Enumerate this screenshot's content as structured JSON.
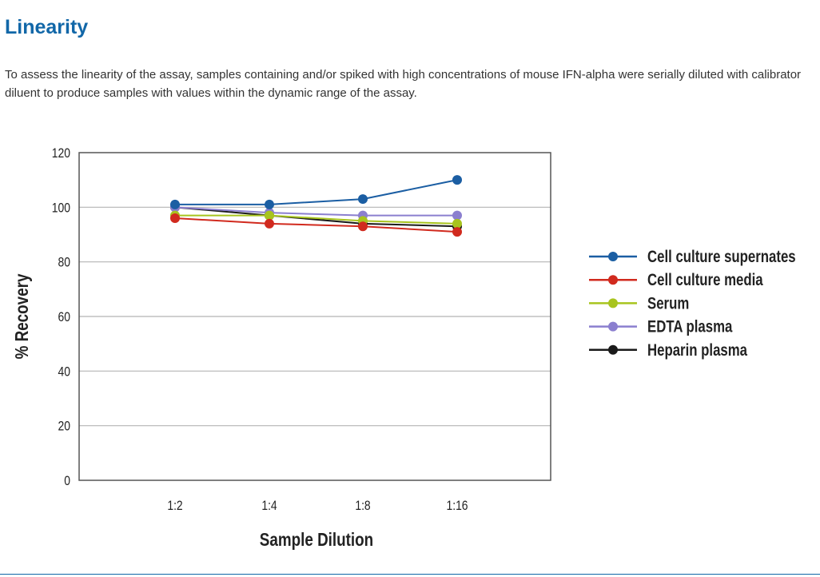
{
  "page": {
    "title": "Linearity",
    "intro": "To assess the linearity of the assay, samples containing and/or spiked with high concentrations of mouse IFN-alpha were serially diluted with calibrator diluent to produce samples with values within the dynamic range of the assay."
  },
  "chart_data": {
    "type": "line",
    "title": "",
    "xlabel": "Sample Dilution",
    "ylabel": "% Recovery",
    "categories": [
      "1:2",
      "1:4",
      "1:8",
      "1:16"
    ],
    "ylim": [
      0,
      120
    ],
    "yticks": [
      0,
      20,
      40,
      60,
      80,
      100,
      120
    ],
    "grid": true,
    "legend_position": "right",
    "series": [
      {
        "name": "Cell culture supernates",
        "color": "#1b5ea3",
        "values": [
          101,
          101,
          103,
          110
        ]
      },
      {
        "name": "Cell culture media",
        "color": "#d12a1e",
        "values": [
          96,
          94,
          93,
          91
        ]
      },
      {
        "name": "Serum",
        "color": "#a8c41e",
        "values": [
          97,
          97,
          95,
          94
        ]
      },
      {
        "name": "EDTA plasma",
        "color": "#8b7fcf",
        "values": [
          100,
          98,
          97,
          97
        ]
      },
      {
        "name": "Heparin plasma",
        "color": "#1a1a1a",
        "values": [
          100,
          97,
          94,
          93
        ]
      }
    ]
  }
}
